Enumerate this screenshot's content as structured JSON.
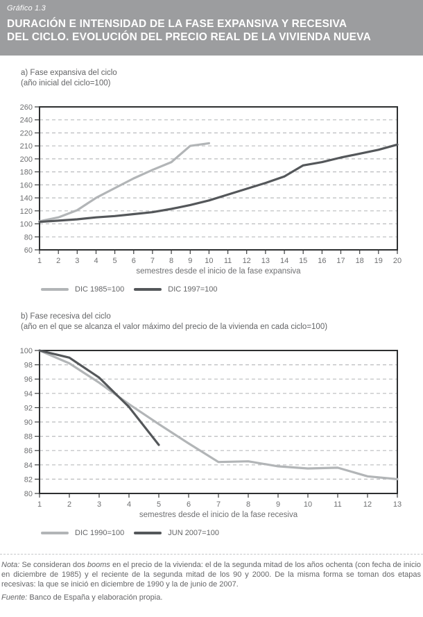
{
  "header": {
    "kicker": "Gráfico 1.3",
    "title_line1": "DURACIÓN E INTENSIDAD DE LA FASE EXPANSIVA Y RECESIVA",
    "title_line2": "DEL CICLO. EVOLUCIÓN DEL PRECIO REAL DE LA VIVIENDA NUEVA"
  },
  "chart_data": [
    {
      "type": "line",
      "title": "a) Fase expansiva del ciclo",
      "subtitle": "(año inicial del ciclo=100)",
      "xlabel": "semestres desde el inicio de la fase expansiva",
      "x_ticks": [
        1,
        2,
        3,
        4,
        5,
        6,
        7,
        8,
        9,
        10,
        11,
        12,
        13,
        14,
        15,
        16,
        17,
        18,
        19,
        20
      ],
      "y_tick_labels": [
        260,
        240,
        220,
        210,
        200,
        180,
        160,
        140,
        120,
        100,
        80,
        60
      ],
      "grid": "dashed-horizontal",
      "legend_position": "bottom-left",
      "series": [
        {
          "name": "DIC 1985=100",
          "color": "#b2b5b7",
          "x_start": 1,
          "values": [
            104,
            110,
            121,
            140,
            155,
            170,
            183,
            195,
            210,
            212
          ]
        },
        {
          "name": "DIC 1997=100",
          "color": "#54575a",
          "x_start": 1,
          "values": [
            103,
            105,
            107,
            110,
            112,
            115,
            118,
            123,
            129,
            136,
            145,
            154,
            163,
            173,
            190,
            195,
            201,
            204,
            207,
            211
          ]
        }
      ]
    },
    {
      "type": "line",
      "title": "b) Fase recesiva del ciclo",
      "subtitle": "(año en el que se alcanza el valor máximo del precio de la vivienda en cada ciclo=100)",
      "xlabel": "semestres desde el inicio de la fase recesiva",
      "x_ticks": [
        1,
        2,
        3,
        4,
        5,
        6,
        7,
        8,
        9,
        10,
        11,
        12,
        13
      ],
      "y_tick_labels": [
        100,
        98,
        96,
        94,
        92,
        90,
        88,
        86,
        84,
        82,
        80
      ],
      "grid": "dashed-horizontal",
      "legend_position": "bottom-left",
      "series": [
        {
          "name": "DIC 1990=100",
          "color": "#b2b5b7",
          "x_start": 1,
          "values": [
            100,
            98.2,
            95.5,
            92.5,
            89.7,
            87.0,
            84.4,
            84.5,
            83.8,
            83.5,
            83.6,
            82.4,
            82.0
          ]
        },
        {
          "name": "JUN 2007=100",
          "color": "#54575a",
          "x_start": 1,
          "values": [
            100,
            99.0,
            96.2,
            92.1,
            86.8
          ]
        }
      ]
    }
  ],
  "note": {
    "segments": [
      {
        "text": "Nota:",
        "italic": true
      },
      {
        "text": " Se consideran dos ",
        "italic": false
      },
      {
        "text": "booms",
        "italic": true
      },
      {
        "text": " en el precio de la vivienda: el de la segunda mitad de los años ochenta (con fecha de inicio en diciembre de 1985) y el reciente de la segunda mitad de los 90 y 2000. De la misma forma se toman dos etapas recesivas: la que se inició en diciembre de 1990 y la de junio de 2007.",
        "italic": false
      }
    ]
  },
  "fuente": {
    "segments": [
      {
        "text": "Fuente:",
        "italic": true
      },
      {
        "text": " Banco de España y elaboración propia.",
        "italic": false
      }
    ]
  },
  "colors": {
    "header_bg": "#9c9d9f",
    "header_text": "#ffffff",
    "series_light": "#b2b5b7",
    "series_dark": "#54575a",
    "gridline": "#babcbe",
    "frame": "#2d2f30",
    "label_text": "#6e6f71"
  }
}
